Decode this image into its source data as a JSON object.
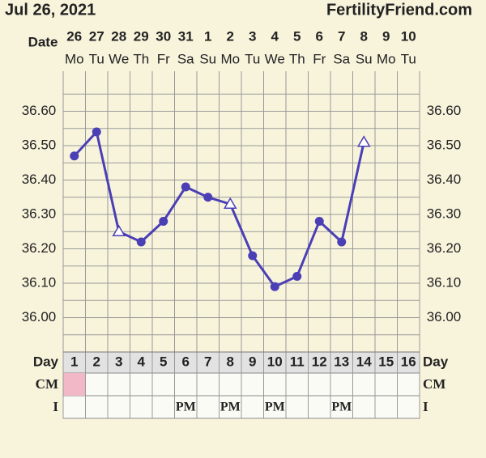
{
  "chart_data": {
    "type": "line",
    "title": "Jul 26, 2021",
    "site": "FertilityFriend.com",
    "date_label": "Date",
    "dates": [
      "26",
      "27",
      "28",
      "29",
      "30",
      "31",
      "1",
      "2",
      "3",
      "4",
      "5",
      "6",
      "7",
      "8",
      "9",
      "10"
    ],
    "weekdays": [
      "Mo",
      "Tu",
      "We",
      "Th",
      "Fr",
      "Sa",
      "Su",
      "Mo",
      "Tu",
      "We",
      "Th",
      "Fr",
      "Sa",
      "Su",
      "Mo",
      "Tu"
    ],
    "day_label": "Day",
    "categories": [
      1,
      2,
      3,
      4,
      5,
      6,
      7,
      8,
      9,
      10,
      11,
      12,
      13,
      14,
      15,
      16
    ],
    "series": [
      {
        "color": "#4b3fb5",
        "values": [
          36.47,
          36.54,
          36.25,
          36.22,
          36.28,
          36.38,
          36.35,
          36.33,
          36.18,
          36.09,
          36.12,
          36.28,
          36.22,
          36.51,
          null,
          null
        ],
        "markers": [
          "circle",
          "circle",
          "triangle",
          "circle",
          "circle",
          "circle",
          "circle",
          "triangle",
          "circle",
          "circle",
          "circle",
          "circle",
          "circle",
          "triangle",
          null,
          null
        ]
      }
    ],
    "ylim": [
      35.9,
      36.7
    ],
    "yticks": [
      {
        "value": 36,
        "label": "36.00"
      },
      {
        "value": 36.1,
        "label": "36.10"
      },
      {
        "value": 36.2,
        "label": "36.20"
      },
      {
        "value": 36.3,
        "label": "36.30"
      },
      {
        "value": 36.4,
        "label": "36.40"
      },
      {
        "value": 36.5,
        "label": "36.50"
      },
      {
        "value": 36.6,
        "label": "36.60"
      }
    ],
    "grid": true,
    "cm_label": "CM",
    "cm_colors": [
      "#f2b8c8",
      null,
      null,
      null,
      null,
      null,
      null,
      null,
      null,
      null,
      null,
      null,
      null,
      null,
      null,
      null
    ],
    "i_label": "I",
    "intercourse": [
      null,
      null,
      null,
      null,
      null,
      "PM",
      null,
      "PM",
      null,
      "PM",
      null,
      null,
      "PM",
      null,
      null,
      null
    ]
  }
}
